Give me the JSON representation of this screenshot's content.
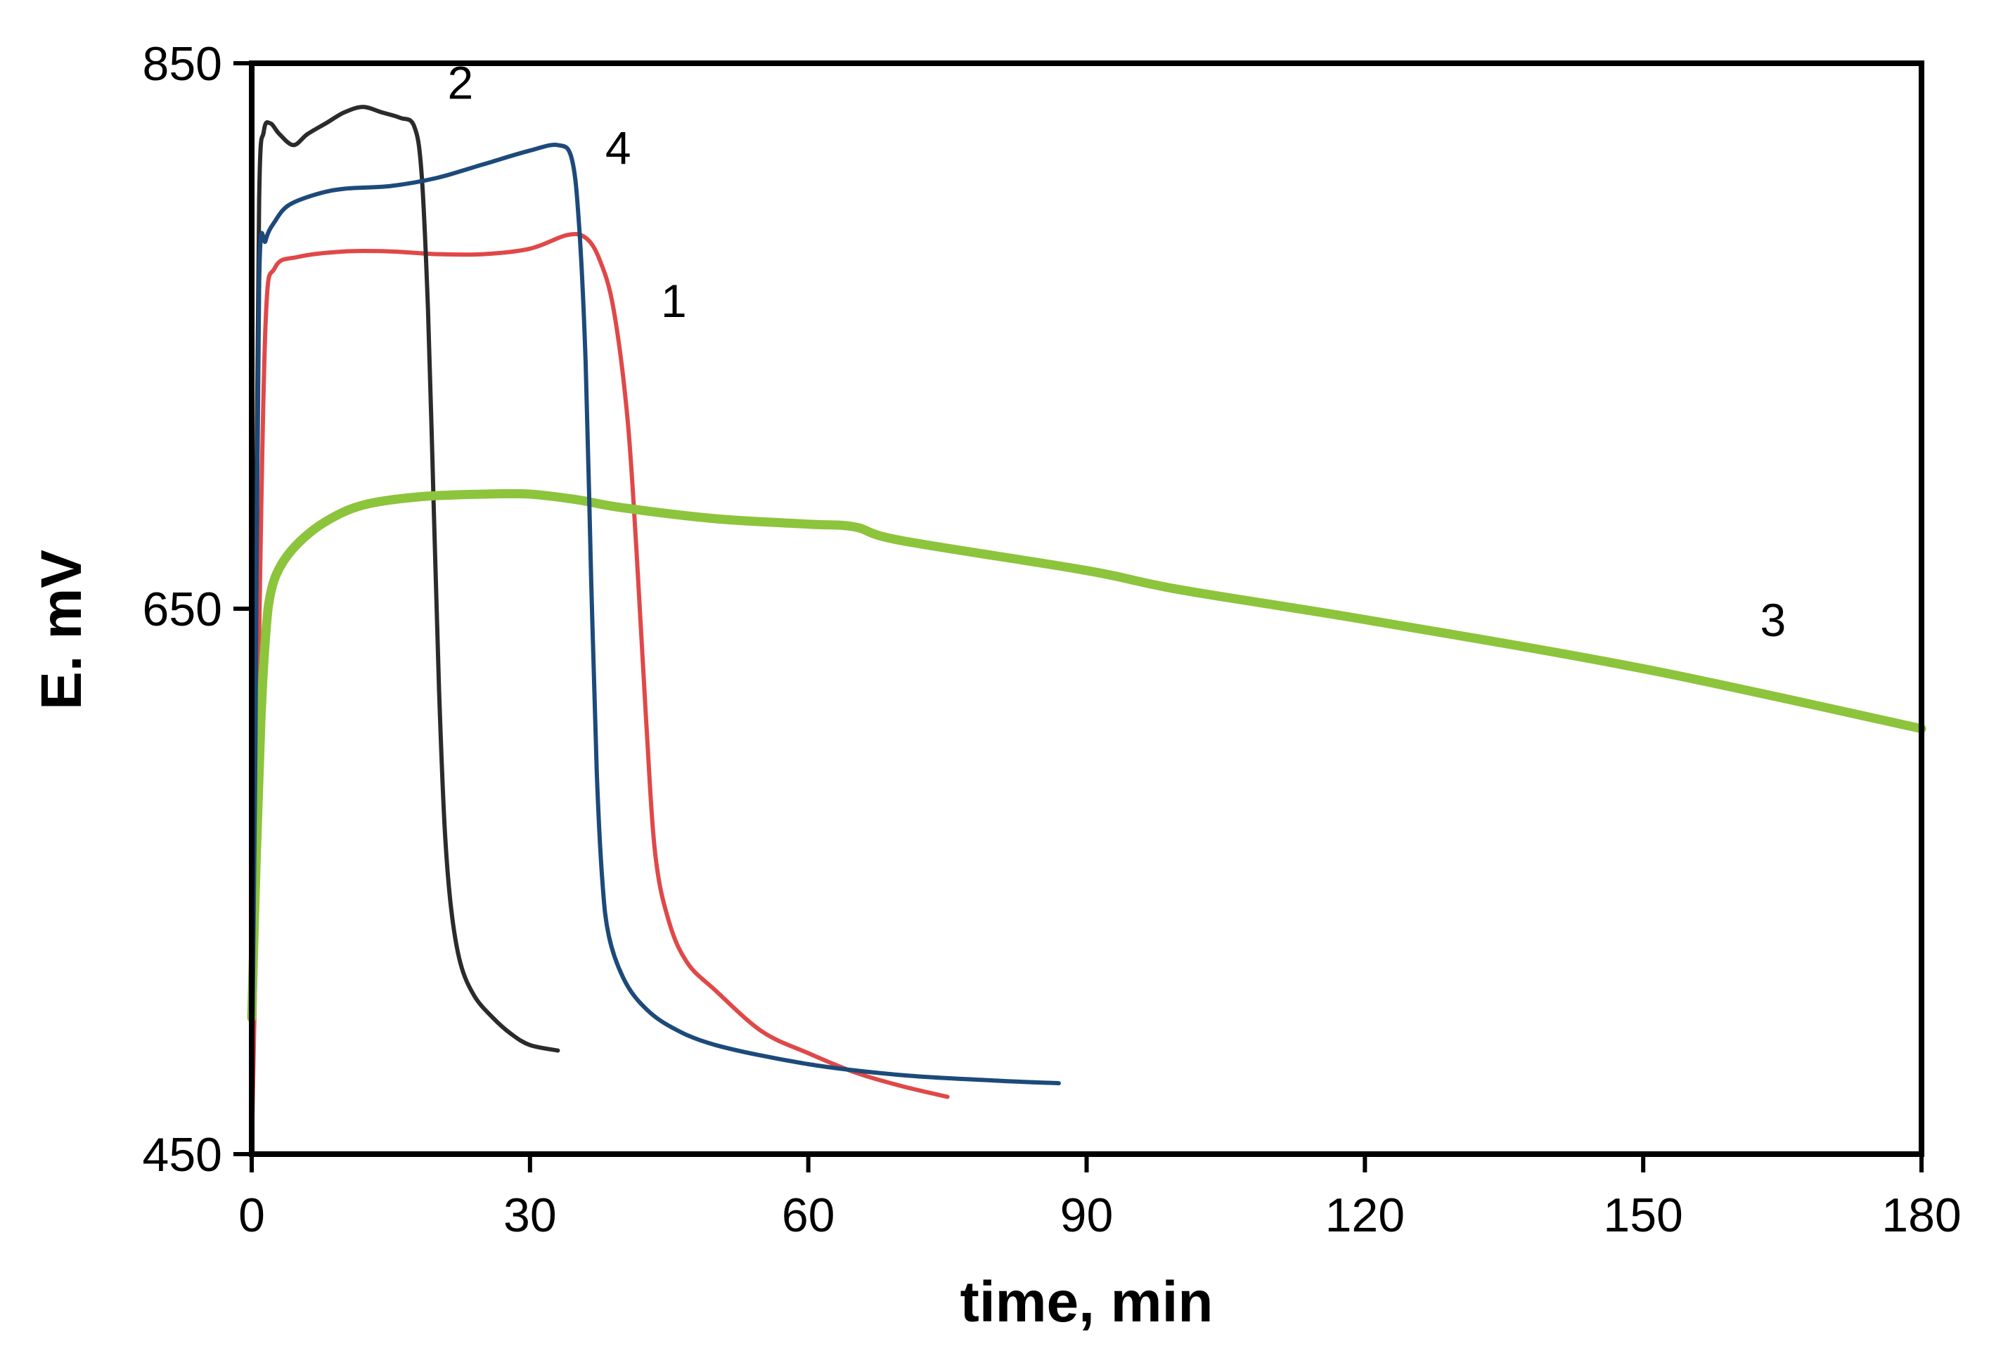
{
  "chart_data": {
    "type": "line",
    "title": "",
    "xlabel": "time, min",
    "ylabel": "E. mV",
    "xlim": [
      0,
      180
    ],
    "ylim": [
      450,
      850
    ],
    "xticks": [
      0,
      30,
      60,
      90,
      120,
      150,
      180
    ],
    "yticks": [
      450,
      650,
      850
    ],
    "grid": false,
    "legend": "none",
    "series": [
      {
        "name": "1",
        "color": "#e04848",
        "x": [
          0,
          0.4,
          0.8,
          1.5,
          2.5,
          5,
          10,
          15,
          20,
          25,
          30,
          34,
          36,
          37.5,
          39,
          40.5,
          41.5,
          42.5,
          43.5,
          45,
          47,
          50,
          55,
          60,
          65,
          70,
          75
        ],
        "y": [
          450,
          520,
          640,
          755,
          775,
          779,
          781,
          781,
          780,
          780,
          782,
          787,
          786,
          778,
          760,
          720,
          670,
          610,
          560,
          535,
          520,
          510,
          495,
          487,
          480,
          475,
          471
        ]
      },
      {
        "name": "2",
        "color": "#2b2b2b",
        "x": [
          0,
          0.4,
          0.8,
          1.3,
          2,
          3,
          4.5,
          6,
          8,
          10,
          12,
          14,
          16,
          17.5,
          18.3,
          19,
          19.6,
          20.2,
          20.8,
          21.5,
          22.5,
          24,
          26,
          28,
          30,
          33
        ],
        "y": [
          480,
          650,
          800,
          825,
          828,
          824,
          820,
          824,
          828,
          832,
          834,
          832,
          830,
          827,
          810,
          760,
          690,
          620,
          570,
          540,
          520,
          508,
          500,
          494,
          490,
          488
        ]
      },
      {
        "name": "3",
        "color": "#8cc43c",
        "x": [
          0,
          0.5,
          1,
          1.5,
          2,
          3,
          5,
          8,
          12,
          18,
          25,
          30,
          35,
          40,
          50,
          60,
          65,
          70,
          90,
          100,
          120,
          150,
          180
        ],
        "y": [
          500,
          560,
          610,
          640,
          655,
          665,
          674,
          682,
          688,
          691,
          692,
          692,
          690,
          687,
          683,
          681,
          680,
          675,
          664,
          657,
          646,
          628,
          606
        ]
      },
      {
        "name": "4",
        "color": "#1c4a7a",
        "x": [
          0,
          0.4,
          0.8,
          1.5,
          2.5,
          4,
          7,
          10,
          15,
          20,
          25,
          30,
          33,
          34.5,
          35.3,
          36,
          36.6,
          37.2,
          37.8,
          38.5,
          40,
          42,
          45,
          50,
          60,
          70,
          80,
          87
        ],
        "y": [
          470,
          600,
          770,
          785,
          792,
          798,
          802,
          804,
          805,
          808,
          813,
          818,
          820,
          815,
          790,
          740,
          660,
          590,
          550,
          530,
          515,
          505,
          497,
          490,
          483,
          479,
          477,
          476
        ]
      }
    ],
    "annotations": [
      {
        "text": "2",
        "x": 22.5,
        "y": 837
      },
      {
        "text": "4",
        "x": 39.5,
        "y": 813
      },
      {
        "text": "1",
        "x": 45.5,
        "y": 757
      },
      {
        "text": "3",
        "x": 164,
        "y": 640
      }
    ]
  }
}
